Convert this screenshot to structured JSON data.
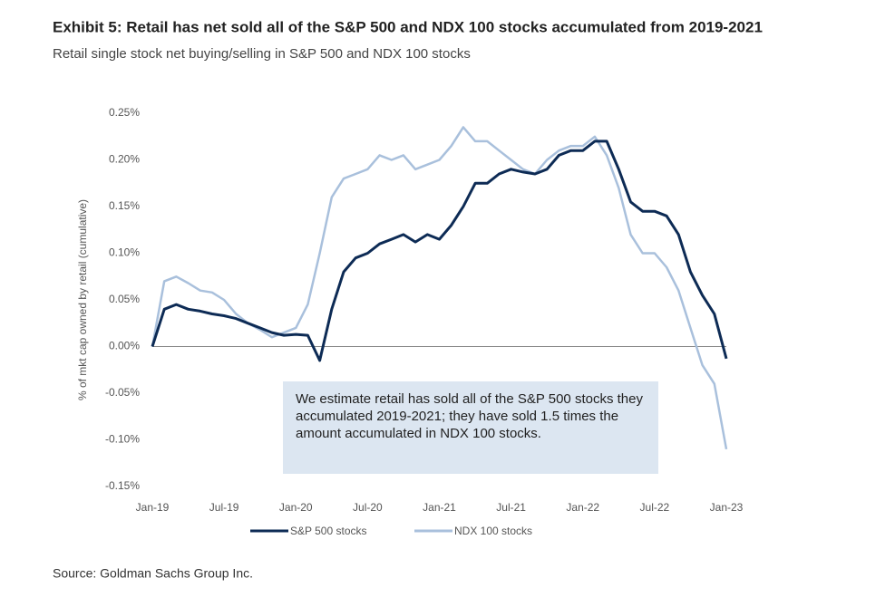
{
  "chart_data": {
    "type": "line",
    "title": "Exhibit 5: Retail has net sold all of the S&P 500 and NDX 100 stocks accumulated from 2019-2021",
    "subtitle": "Retail single stock net buying/selling in S&P 500 and NDX 100 stocks",
    "y_label": "% of mkt cap owned by retail (cumulative)",
    "annotation": "We estimate retail has sold all of the S&P 500 stocks they accumulated 2019-2021; they have sold 1.5 times the amount accumulated in NDX 100 stocks.",
    "source": "Source: Goldman Sachs Group Inc.",
    "categories": [
      "Jan-19",
      null,
      null,
      null,
      null,
      null,
      "Jul-19",
      null,
      null,
      null,
      null,
      null,
      "Jan-20",
      null,
      null,
      null,
      null,
      null,
      "Jul-20",
      null,
      null,
      null,
      null,
      null,
      "Jan-21",
      null,
      null,
      null,
      null,
      null,
      "Jul-21",
      null,
      null,
      null,
      null,
      null,
      "Jan-22",
      null,
      null,
      null,
      null,
      null,
      "Jul-22",
      null,
      null,
      null,
      null,
      null,
      "Jan-23"
    ],
    "series": [
      {
        "name": "S&P 500 stocks",
        "color": "#0d2b55",
        "values": [
          0.0,
          0.04,
          0.045,
          0.04,
          0.038,
          0.035,
          0.033,
          0.03,
          0.025,
          0.02,
          0.015,
          0.012,
          0.013,
          0.012,
          -0.015,
          0.04,
          0.08,
          0.095,
          0.1,
          0.11,
          0.115,
          0.12,
          0.112,
          0.12,
          0.115,
          0.13,
          0.15,
          0.175,
          0.175,
          0.185,
          0.19,
          0.187,
          0.185,
          0.19,
          0.205,
          0.21,
          0.21,
          0.22,
          0.22,
          0.19,
          0.155,
          0.145,
          0.145,
          0.14,
          0.12,
          0.08,
          0.055,
          0.035,
          -0.013
        ]
      },
      {
        "name": "NDX 100 stocks",
        "color": "#a9c0dc",
        "values": [
          0.0,
          0.07,
          0.075,
          0.068,
          0.06,
          0.058,
          0.05,
          0.035,
          0.025,
          0.018,
          0.01,
          0.015,
          0.02,
          0.045,
          0.1,
          0.16,
          0.18,
          0.185,
          0.19,
          0.205,
          0.2,
          0.205,
          0.19,
          0.195,
          0.2,
          0.215,
          0.235,
          0.22,
          0.22,
          0.21,
          0.2,
          0.19,
          0.185,
          0.2,
          0.21,
          0.215,
          0.215,
          0.225,
          0.205,
          0.17,
          0.12,
          0.1,
          0.1,
          0.085,
          0.06,
          0.02,
          -0.02,
          -0.04,
          -0.11
        ]
      }
    ],
    "ylim": [
      -0.15,
      0.25
    ],
    "yticks": [
      {
        "value": -0.15,
        "label": "-0.15%"
      },
      {
        "value": -0.1,
        "label": "-0.10%"
      },
      {
        "value": -0.05,
        "label": "-0.05%"
      },
      {
        "value": 0,
        "label": "0.00%"
      },
      {
        "value": 0.05,
        "label": "0.05%"
      },
      {
        "value": 0.1,
        "label": "0.10%"
      },
      {
        "value": 0.15,
        "label": "0.15%"
      },
      {
        "value": 0.2,
        "label": "0.20%"
      },
      {
        "value": 0.25,
        "label": "0.25%"
      }
    ],
    "grid": false,
    "legend": "bottom"
  }
}
